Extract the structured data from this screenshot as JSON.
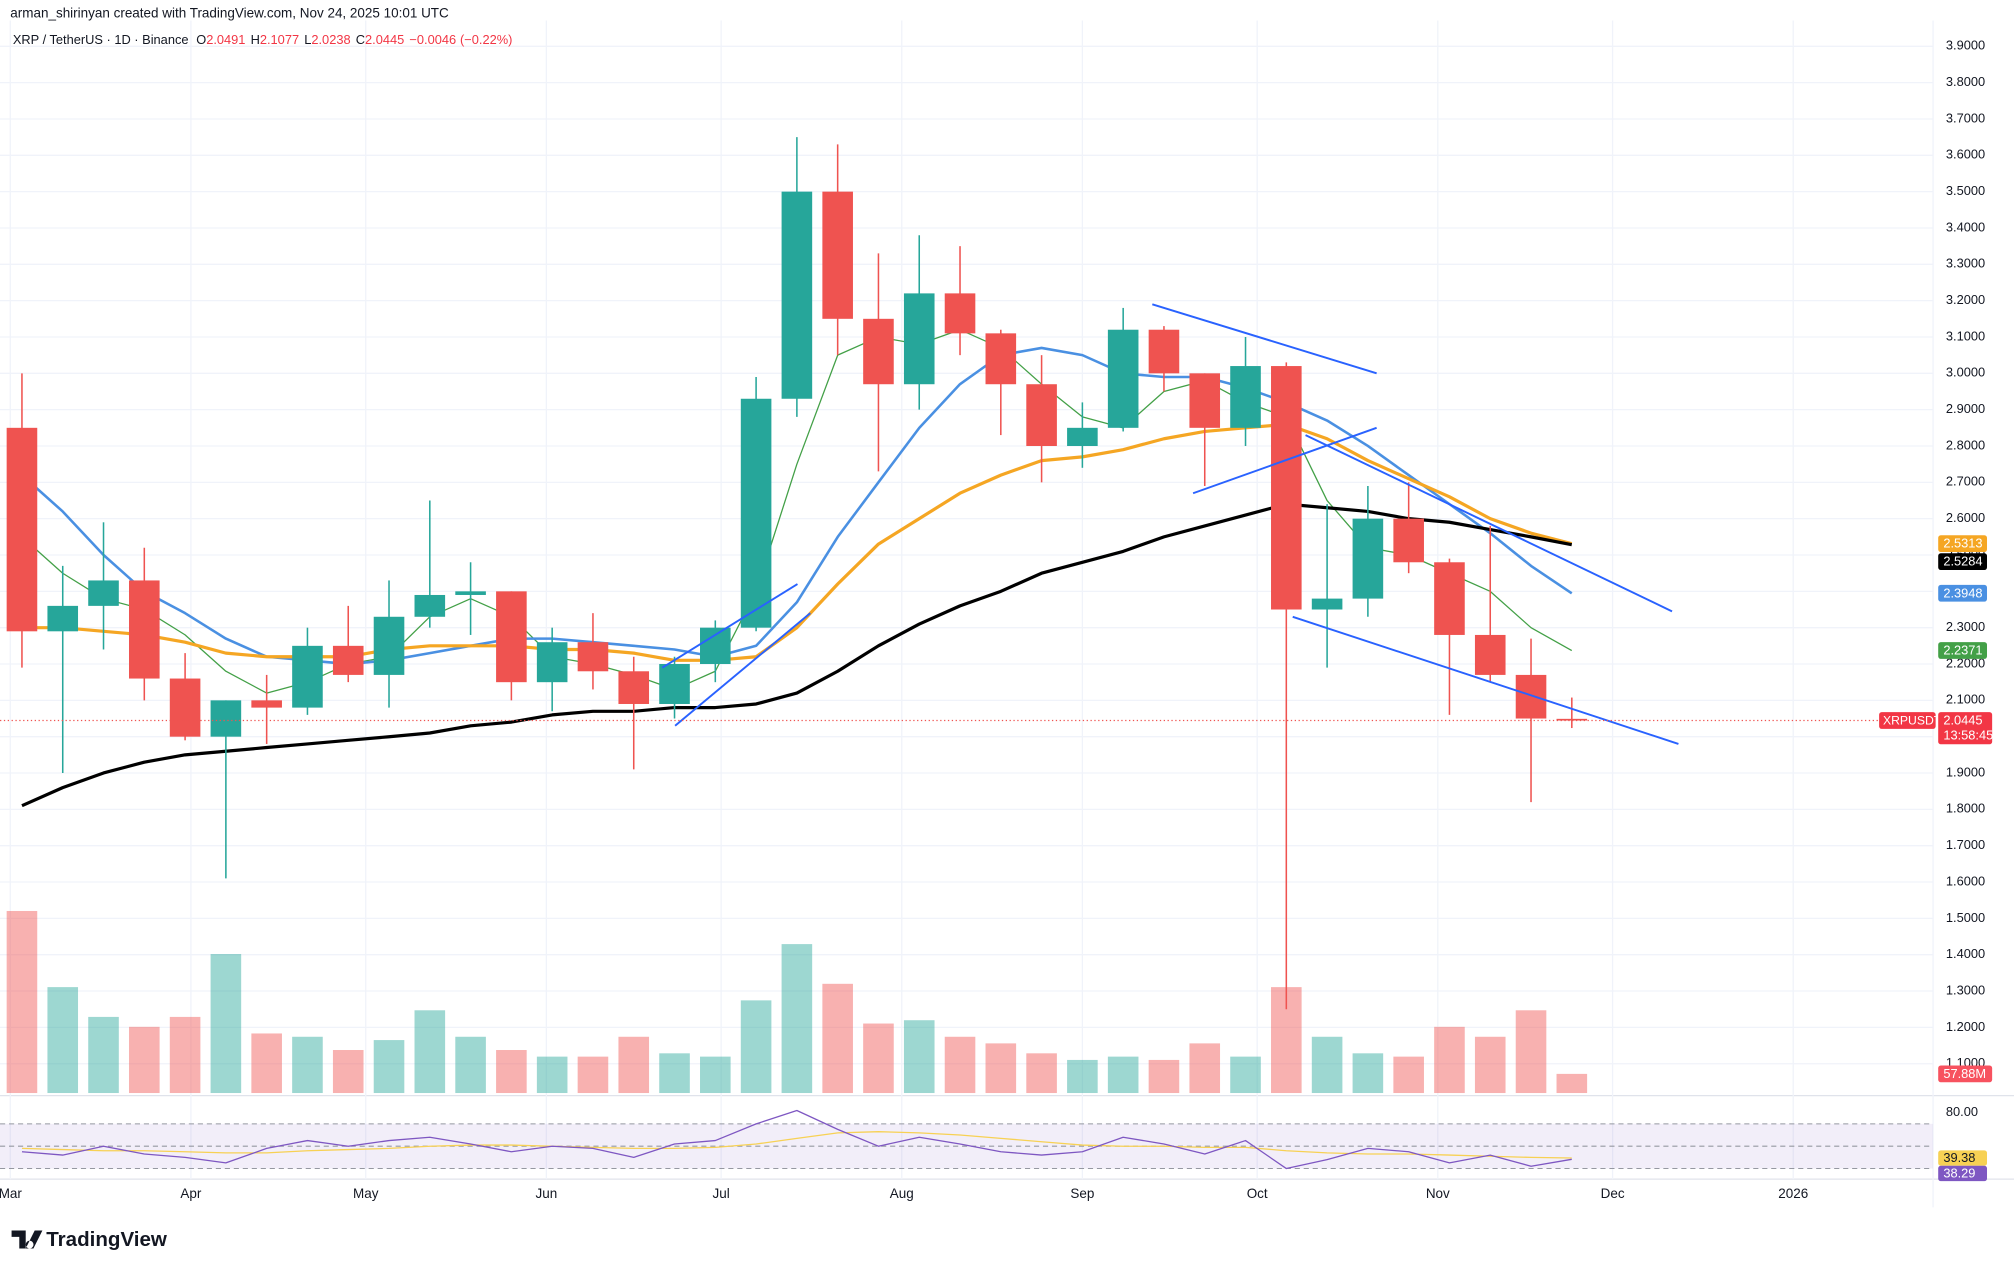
{
  "attribution": "arman_shirinyan created with TradingView.com, Nov 24, 2025 10:01 UTC",
  "brand": "TradingView",
  "header": {
    "symbol": "XRP / TetherUS · 1D · Binance",
    "ohlc": [
      {
        "label": "O",
        "value": 2.0491
      },
      {
        "label": "H",
        "value": 2.1077
      },
      {
        "label": "L",
        "value": 2.0238
      },
      {
        "label": "C",
        "value": 2.0445
      }
    ],
    "change": {
      "value": -0.0046,
      "label": "−0.0046"
    },
    "change_pct": {
      "value": -0.22,
      "label": "(−0.22%)"
    }
  },
  "chart_data": {
    "type": "candlestick",
    "x": [
      2,
      9,
      16,
      23,
      30,
      37,
      44,
      51,
      58,
      65,
      72,
      79,
      86,
      93,
      100,
      107,
      114,
      121,
      128,
      135,
      142,
      149,
      156,
      163,
      170,
      177,
      184,
      191,
      198,
      205,
      212,
      219,
      226,
      233,
      240,
      247,
      254,
      261,
      268
    ],
    "open": [
      2.85,
      2.29,
      2.36,
      2.43,
      2.16,
      2.0,
      2.1,
      2.08,
      2.25,
      2.17,
      2.33,
      2.39,
      2.4,
      2.15,
      2.26,
      2.18,
      2.09,
      2.2,
      2.3,
      2.93,
      3.5,
      3.15,
      2.97,
      3.22,
      3.11,
      2.97,
      2.8,
      2.85,
      3.12,
      3.0,
      2.85,
      3.02,
      2.35,
      2.38,
      2.6,
      2.48,
      2.28,
      2.17,
      2.0491
    ],
    "high": [
      3.0,
      2.47,
      2.59,
      2.52,
      2.23,
      2.1,
      2.17,
      2.3,
      2.36,
      2.43,
      2.65,
      2.48,
      2.4,
      2.3,
      2.34,
      2.22,
      2.22,
      2.32,
      2.99,
      3.65,
      3.63,
      3.33,
      3.38,
      3.35,
      3.12,
      3.05,
      2.92,
      3.18,
      3.13,
      3.0,
      3.1,
      3.03,
      2.64,
      2.69,
      2.7,
      2.49,
      2.58,
      2.27,
      2.1077
    ],
    "low": [
      2.19,
      1.9,
      2.24,
      2.1,
      1.99,
      1.61,
      1.98,
      2.06,
      2.15,
      2.08,
      2.3,
      2.28,
      2.1,
      2.07,
      2.13,
      1.91,
      2.05,
      2.15,
      2.29,
      2.88,
      3.05,
      2.73,
      2.9,
      3.05,
      2.83,
      2.7,
      2.74,
      2.84,
      2.95,
      2.69,
      2.8,
      1.25,
      2.19,
      2.33,
      2.45,
      2.06,
      2.15,
      1.82,
      2.0238
    ],
    "close": [
      2.29,
      2.36,
      2.43,
      2.16,
      2.0,
      2.1,
      2.08,
      2.25,
      2.17,
      2.33,
      2.39,
      2.4,
      2.15,
      2.26,
      2.18,
      2.09,
      2.2,
      2.3,
      2.93,
      3.5,
      3.15,
      2.97,
      3.22,
      3.11,
      2.97,
      2.8,
      2.85,
      3.12,
      3.0,
      2.85,
      3.02,
      2.35,
      2.38,
      2.6,
      2.48,
      2.28,
      2.17,
      2.05,
      2.0445
    ],
    "up_color": "#26a69a",
    "down_color": "#ef5350",
    "symbol_label": "XRPUSDT",
    "countdown": "13:58:45",
    "xlim": [
      0,
      330
    ],
    "xticks": [
      {
        "value": 0,
        "label": "Mar"
      },
      {
        "value": 31,
        "label": "Apr"
      },
      {
        "value": 61,
        "label": "May"
      },
      {
        "value": 92,
        "label": "Jun"
      },
      {
        "value": 122,
        "label": "Jul"
      },
      {
        "value": 153,
        "label": "Aug"
      },
      {
        "value": 184,
        "label": "Sep"
      },
      {
        "value": 214,
        "label": "Oct"
      },
      {
        "value": 245,
        "label": "Nov"
      },
      {
        "value": 275,
        "label": "Dec"
      },
      {
        "value": 306,
        "label": "2026"
      }
    ],
    "ylim": [
      1.02,
      3.95
    ],
    "yticks": [
      {
        "value": 1.1,
        "label": "1.1000"
      },
      {
        "value": 1.2,
        "label": "1.2000"
      },
      {
        "value": 1.3,
        "label": "1.3000"
      },
      {
        "value": 1.4,
        "label": "1.4000"
      },
      {
        "value": 1.5,
        "label": "1.5000"
      },
      {
        "value": 1.6,
        "label": "1.6000"
      },
      {
        "value": 1.7,
        "label": "1.7000"
      },
      {
        "value": 1.8,
        "label": "1.8000"
      },
      {
        "value": 1.9,
        "label": "1.9000"
      },
      {
        "value": 2.0,
        "label": "2.0000"
      },
      {
        "value": 2.1,
        "label": "2.1000"
      },
      {
        "value": 2.2,
        "label": "2.2000"
      },
      {
        "value": 2.3,
        "label": "2.3000"
      },
      {
        "value": 2.4,
        "label": "2.4000"
      },
      {
        "value": 2.5,
        "label": "2.5000"
      },
      {
        "value": 2.6,
        "label": "2.6000"
      },
      {
        "value": 2.7,
        "label": "2.7000"
      },
      {
        "value": 2.8,
        "label": "2.8000"
      },
      {
        "value": 2.9,
        "label": "2.9000"
      },
      {
        "value": 3.0,
        "label": "3.0000"
      },
      {
        "value": 3.1,
        "label": "3.1000"
      },
      {
        "value": 3.2,
        "label": "3.2000"
      },
      {
        "value": 3.3,
        "label": "3.3000"
      },
      {
        "value": 3.4,
        "label": "3.4000"
      },
      {
        "value": 3.5,
        "label": "3.5000"
      },
      {
        "value": 3.6,
        "label": "3.6000"
      },
      {
        "value": 3.7,
        "label": "3.7000"
      },
      {
        "value": 3.8,
        "label": "3.8000"
      },
      {
        "value": 3.9,
        "label": "3.9000"
      }
    ],
    "grid": true,
    "lines": [
      {
        "color": "#43a047",
        "width": 1,
        "values": [
          2.55,
          2.45,
          2.38,
          2.35,
          2.28,
          2.18,
          2.12,
          2.15,
          2.2,
          2.22,
          2.33,
          2.38,
          2.33,
          2.22,
          2.2,
          2.17,
          2.13,
          2.18,
          2.4,
          2.75,
          3.05,
          3.1,
          3.08,
          3.12,
          3.07,
          2.97,
          2.88,
          2.85,
          2.95,
          2.98,
          2.92,
          2.88,
          2.65,
          2.52,
          2.5,
          2.45,
          2.4,
          2.3,
          2.2371
        ]
      },
      {
        "color": "#4a90e2",
        "width": 2,
        "values": [
          2.72,
          2.62,
          2.5,
          2.4,
          2.34,
          2.27,
          2.22,
          2.21,
          2.2,
          2.21,
          2.23,
          2.25,
          2.27,
          2.27,
          2.26,
          2.25,
          2.24,
          2.22,
          2.25,
          2.37,
          2.55,
          2.7,
          2.85,
          2.97,
          3.05,
          3.07,
          3.05,
          3.0,
          2.99,
          2.99,
          2.96,
          2.92,
          2.87,
          2.8,
          2.72,
          2.64,
          2.56,
          2.47,
          2.3948
        ]
      },
      {
        "color": "#f5a623",
        "width": 2.5,
        "values": [
          2.3,
          2.3,
          2.29,
          2.28,
          2.26,
          2.23,
          2.22,
          2.22,
          2.22,
          2.24,
          2.25,
          2.25,
          2.25,
          2.24,
          2.24,
          2.23,
          2.21,
          2.21,
          2.22,
          2.3,
          2.42,
          2.53,
          2.6,
          2.67,
          2.72,
          2.76,
          2.77,
          2.79,
          2.82,
          2.84,
          2.85,
          2.86,
          2.82,
          2.76,
          2.71,
          2.66,
          2.6,
          2.56,
          2.5313
        ]
      },
      {
        "color": "#000000",
        "width": 2.5,
        "values": [
          1.81,
          1.86,
          1.9,
          1.93,
          1.95,
          1.96,
          1.97,
          1.98,
          1.99,
          2.0,
          2.01,
          2.03,
          2.04,
          2.06,
          2.07,
          2.07,
          2.08,
          2.08,
          2.09,
          2.12,
          2.18,
          2.25,
          2.31,
          2.36,
          2.4,
          2.45,
          2.48,
          2.51,
          2.55,
          2.58,
          2.61,
          2.64,
          2.63,
          2.62,
          2.6,
          2.59,
          2.57,
          2.55,
          2.5284
        ]
      }
    ],
    "trendline_color": "#2962ff",
    "trendlines": [
      {
        "x": [
          196,
          234.5
        ],
        "y": [
          3.19,
          3.0
        ]
      },
      {
        "x": [
          203,
          234.5
        ],
        "y": [
          2.67,
          2.85
        ]
      },
      {
        "x": [
          222.3,
          285.2
        ],
        "y": [
          2.83,
          2.345
        ]
      },
      {
        "x": [
          220.1,
          286.3
        ],
        "y": [
          2.33,
          1.98
        ]
      },
      {
        "x": [
          111.9,
          135.1
        ],
        "y": [
          2.19,
          2.42
        ]
      },
      {
        "x": [
          114.1,
          137.3
        ],
        "y": [
          2.03,
          2.34
        ]
      }
    ],
    "volume": {
      "values": [
        550,
        320,
        230,
        200,
        230,
        420,
        180,
        170,
        130,
        160,
        250,
        170,
        130,
        110,
        110,
        170,
        120,
        110,
        280,
        450,
        330,
        210,
        220,
        170,
        150,
        120,
        100,
        110,
        100,
        150,
        110,
        320,
        170,
        120,
        110,
        200,
        170,
        250,
        57.88
      ],
      "last_label": "57.88M",
      "ylim": [
        0,
        780
      ]
    },
    "rsi": {
      "values": [
        45,
        42,
        50,
        43,
        40,
        35,
        48,
        55,
        50,
        55,
        58,
        52,
        45,
        50,
        48,
        40,
        52,
        55,
        70,
        82,
        65,
        50,
        58,
        52,
        45,
        42,
        45,
        58,
        52,
        43,
        55,
        30,
        38,
        48,
        45,
        35,
        42,
        32,
        38.29
      ],
      "ma": [
        48,
        47,
        46,
        46,
        45,
        44,
        44,
        46,
        47,
        48,
        50,
        51,
        51,
        50,
        49,
        48,
        48,
        49,
        52,
        57,
        62,
        63,
        62,
        60,
        57,
        54,
        51,
        50,
        50,
        49,
        49,
        46,
        44,
        43,
        43,
        42,
        41,
        40,
        39.38
      ],
      "color": "#7e57c2",
      "ma_color": "#f7d154",
      "ylim": [
        24,
        93
      ],
      "yticks": [
        {
          "value": 80,
          "label": "80.00"
        }
      ],
      "bands": [
        70,
        50,
        30
      ]
    }
  }
}
